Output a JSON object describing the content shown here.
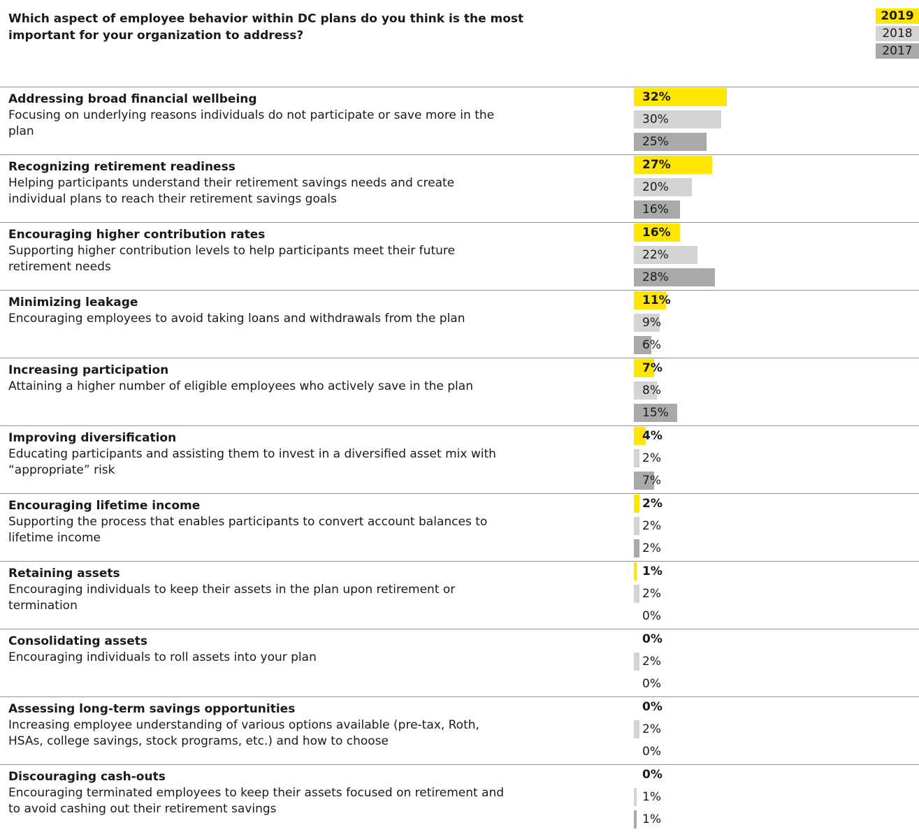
{
  "question": "Which aspect of employee behavior within DC plans do you think is the most important for your organization to address?",
  "colors": {
    "2019": "#ffe600",
    "2018": "#d4d4d4",
    "2017": "#a9a9aa"
  },
  "chart_data": {
    "type": "bar",
    "orientation": "horizontal",
    "title": "Which aspect of employee behavior within DC plans do you think is the most important for your organization to address?",
    "legend": [
      "2019",
      "2018",
      "2017"
    ],
    "legend_position": "top-right",
    "series": [
      {
        "name": "2019",
        "values": [
          32,
          27,
          16,
          11,
          7,
          4,
          2,
          1,
          0,
          0,
          0
        ]
      },
      {
        "name": "2018",
        "values": [
          30,
          20,
          22,
          9,
          8,
          2,
          2,
          2,
          2,
          2,
          1
        ]
      },
      {
        "name": "2017",
        "values": [
          25,
          16,
          28,
          6,
          15,
          7,
          2,
          0,
          0,
          0,
          1
        ]
      }
    ],
    "categories": [
      {
        "title": "Addressing broad financial wellbeing",
        "desc": "Focusing on underlying reasons individuals do not participate or save more in the plan"
      },
      {
        "title": "Recognizing retirement readiness",
        "desc": "Helping participants understand their retirement savings needs and create individual plans to reach their retirement savings goals"
      },
      {
        "title": "Encouraging higher contribution rates",
        "desc": "Supporting higher contribution levels to help participants meet their future retirement needs"
      },
      {
        "title": "Minimizing leakage",
        "desc": "Encouraging employees to avoid taking loans and withdrawals from the plan"
      },
      {
        "title": "Increasing participation",
        "desc": "Attaining a higher number of eligible employees who actively save in the plan"
      },
      {
        "title": "Improving diversification",
        "desc": "Educating participants and assisting them to invest in a diversified asset mix with “appropriate” risk"
      },
      {
        "title": "Encouraging lifetime income",
        "desc": "Supporting the process that enables participants to convert account balances to lifetime income"
      },
      {
        "title": "Retaining assets",
        "desc": "Encouraging individuals to keep their assets in the plan upon retirement or termination"
      },
      {
        "title": "Consolidating assets",
        "desc": "Encouraging individuals to roll assets into your plan"
      },
      {
        "title": "Assessing long-term savings opportunities",
        "desc": "Increasing employee understanding of various options available (pre-tax, Roth, HSAs, college savings, stock programs, etc.) and how to choose"
      },
      {
        "title": "Discouraging cash-outs",
        "desc": "Encouraging terminated employees to keep their assets focused on retirement and to avoid cashing out their retirement savings"
      }
    ],
    "unit": "%"
  }
}
